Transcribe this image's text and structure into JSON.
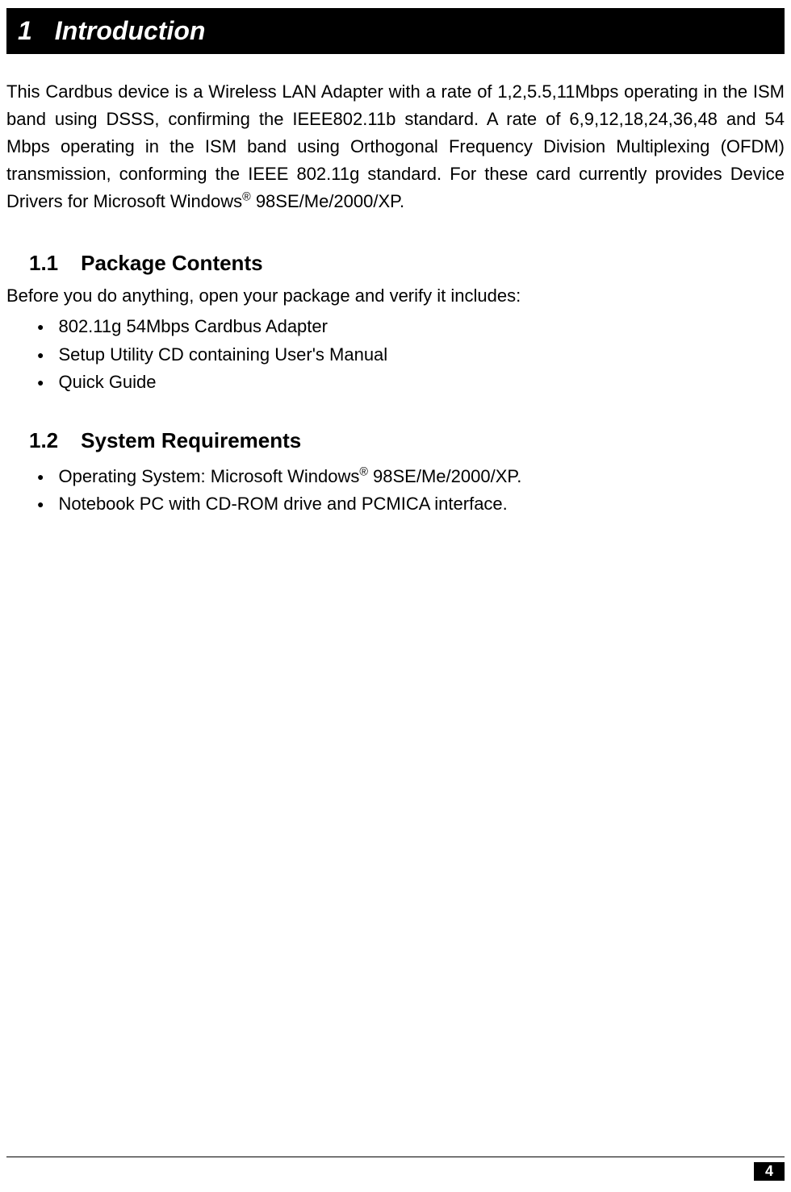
{
  "colors": {
    "header_bg": "#000000",
    "header_text": "#ffffff",
    "body_text": "#000000",
    "page_bg": "#ffffff",
    "footer_line": "#000000",
    "page_num_bg": "#000000",
    "page_num_text": "#ffffff"
  },
  "typography": {
    "body_font": "Tahoma, Verdana, Arial, sans-serif",
    "heading_font": "Arial, sans-serif",
    "chapter_fontsize": 32,
    "section_fontsize": 26,
    "body_fontsize": 22
  },
  "chapter": {
    "number": "1",
    "title": "Introduction"
  },
  "intro_text": "This Cardbus device is a Wireless LAN Adapter with a rate of 1,2,5.5,11Mbps operating in the ISM band using DSSS, confirming the IEEE802.11b standard. A rate of 6,9,12,18,24,36,48 and 54 Mbps operating in the ISM band using Orthogonal Frequency Division Multiplexing (OFDM) transmission, conforming the IEEE 802.11g standard. For these card currently provides Device Drivers for Microsoft Windows",
  "intro_suffix": " 98SE/Me/2000/XP.",
  "registered": "®",
  "sections": [
    {
      "number": "1.1",
      "title": "Package Contents",
      "intro": "Before you do anything, open your package and verify it includes:",
      "items": [
        "802.11g 54Mbps Cardbus Adapter",
        "Setup Utility CD containing User's Manual",
        "Quick Guide"
      ]
    },
    {
      "number": "1.2",
      "title": "System Requirements",
      "intro": null,
      "items_rich": [
        {
          "pre": "Operating System: Microsoft Windows",
          "sup": "®",
          "post": " 98SE/Me/2000/XP."
        },
        {
          "pre": "Notebook PC with CD-ROM drive and PCMICA interface.",
          "sup": null,
          "post": ""
        }
      ]
    }
  ],
  "page_number": "4",
  "bullet_glyph": "●"
}
